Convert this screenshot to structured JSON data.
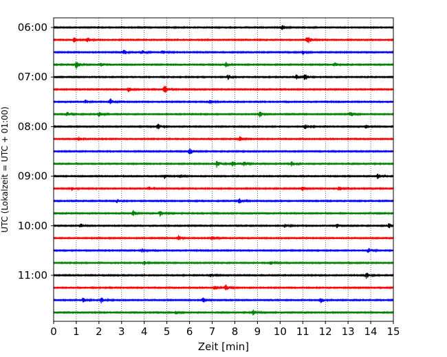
{
  "chart_data": {
    "type": "line",
    "xlabel": "Zeit  [min]",
    "ylabel": "UTC (Lokalzeit = UTC + 01:00)",
    "xlim": [
      0,
      15
    ],
    "x_ticks": [
      "0",
      "1",
      "2",
      "3",
      "4",
      "5",
      "6",
      "7",
      "8",
      "9",
      "10",
      "11",
      "12",
      "13",
      "14",
      "15"
    ],
    "y_ticks": [
      {
        "label": "06:00",
        "trace": 0
      },
      {
        "label": "07:00",
        "trace": 4
      },
      {
        "label": "08:00",
        "trace": 8
      },
      {
        "label": "09:00",
        "trace": 12
      },
      {
        "label": "10:00",
        "trace": 16
      },
      {
        "label": "11:00",
        "trace": 20
      }
    ],
    "grid": "vertical dotted at each minute",
    "trace_colors": [
      "#000000",
      "#ff0000",
      "#0000ff",
      "#008000"
    ],
    "traces": [
      {
        "start": "06:00",
        "color": "#000000",
        "events": [
          {
            "t": 10.1,
            "a": 0.5
          }
        ]
      },
      {
        "start": "06:15",
        "color": "#ff0000",
        "events": [
          {
            "t": 0.9,
            "a": 0.6
          },
          {
            "t": 1.5,
            "a": 0.5
          },
          {
            "t": 11.2,
            "a": 1.0
          }
        ]
      },
      {
        "start": "06:30",
        "color": "#0000ff",
        "events": [
          {
            "t": 3.1,
            "a": 0.6
          },
          {
            "t": 3.9,
            "a": 0.4
          },
          {
            "t": 4.8,
            "a": 0.4
          },
          {
            "t": 11.0,
            "a": 0.4
          }
        ]
      },
      {
        "start": "06:45",
        "color": "#008000",
        "events": [
          {
            "t": 1.0,
            "a": 0.8
          },
          {
            "t": 2.1,
            "a": 0.5
          },
          {
            "t": 7.6,
            "a": 0.6
          },
          {
            "t": 12.4,
            "a": 0.4
          }
        ]
      },
      {
        "start": "07:00",
        "color": "#000000",
        "events": [
          {
            "t": 7.7,
            "a": 0.5
          },
          {
            "t": 10.7,
            "a": 0.5
          },
          {
            "t": 11.1,
            "a": 0.8
          }
        ]
      },
      {
        "start": "07:15",
        "color": "#ff0000",
        "events": [
          {
            "t": 3.3,
            "a": 0.5
          },
          {
            "t": 4.9,
            "a": 1.1
          }
        ]
      },
      {
        "start": "07:30",
        "color": "#0000ff",
        "events": [
          {
            "t": 1.4,
            "a": 0.4
          },
          {
            "t": 2.5,
            "a": 0.8
          },
          {
            "t": 6.9,
            "a": 0.4
          }
        ]
      },
      {
        "start": "07:45",
        "color": "#008000",
        "events": [
          {
            "t": 0.6,
            "a": 0.4
          },
          {
            "t": 2.0,
            "a": 0.5
          },
          {
            "t": 9.1,
            "a": 0.6
          },
          {
            "t": 13.1,
            "a": 0.6
          }
        ]
      },
      {
        "start": "08:00",
        "color": "#000000",
        "events": [
          {
            "t": 4.6,
            "a": 0.6
          },
          {
            "t": 11.1,
            "a": 0.6
          },
          {
            "t": 13.8,
            "a": 0.4
          }
        ]
      },
      {
        "start": "08:15",
        "color": "#ff0000",
        "events": [
          {
            "t": 1.1,
            "a": 0.4
          },
          {
            "t": 8.2,
            "a": 0.5
          }
        ]
      },
      {
        "start": "08:30",
        "color": "#0000ff",
        "events": [
          {
            "t": 6.0,
            "a": 0.8
          }
        ]
      },
      {
        "start": "08:45",
        "color": "#008000",
        "events": [
          {
            "t": 7.2,
            "a": 0.7
          },
          {
            "t": 7.9,
            "a": 0.6
          },
          {
            "t": 8.4,
            "a": 0.6
          },
          {
            "t": 10.5,
            "a": 0.5
          }
        ]
      },
      {
        "start": "09:00",
        "color": "#000000",
        "events": [
          {
            "t": 4.9,
            "a": 0.5
          },
          {
            "t": 5.6,
            "a": 0.4
          },
          {
            "t": 14.3,
            "a": 0.6
          }
        ]
      },
      {
        "start": "09:15",
        "color": "#ff0000",
        "events": [
          {
            "t": 0.8,
            "a": 0.4
          },
          {
            "t": 4.2,
            "a": 0.4
          },
          {
            "t": 11.0,
            "a": 0.5
          },
          {
            "t": 12.6,
            "a": 0.5
          }
        ]
      },
      {
        "start": "09:30",
        "color": "#0000ff",
        "events": [
          {
            "t": 2.8,
            "a": 0.4
          },
          {
            "t": 8.2,
            "a": 0.6
          }
        ]
      },
      {
        "start": "09:45",
        "color": "#008000",
        "events": [
          {
            "t": 3.5,
            "a": 0.7
          },
          {
            "t": 4.7,
            "a": 0.7
          }
        ]
      },
      {
        "start": "10:00",
        "color": "#000000",
        "events": [
          {
            "t": 1.2,
            "a": 0.4
          },
          {
            "t": 10.2,
            "a": 0.4
          },
          {
            "t": 12.5,
            "a": 0.4
          },
          {
            "t": 14.8,
            "a": 0.6
          }
        ]
      },
      {
        "start": "10:15",
        "color": "#ff0000",
        "events": [
          {
            "t": 5.5,
            "a": 0.6
          },
          {
            "t": 7.0,
            "a": 0.5
          }
        ]
      },
      {
        "start": "10:30",
        "color": "#0000ff",
        "events": [
          {
            "t": 3.9,
            "a": 0.4
          },
          {
            "t": 13.9,
            "a": 0.5
          }
        ]
      },
      {
        "start": "10:45",
        "color": "#008000",
        "events": [
          {
            "t": 4.0,
            "a": 0.4
          },
          {
            "t": 9.6,
            "a": 0.4
          }
        ]
      },
      {
        "start": "11:00",
        "color": "#000000",
        "events": [
          {
            "t": 6.9,
            "a": 0.4
          },
          {
            "t": 13.8,
            "a": 0.7
          }
        ]
      },
      {
        "start": "11:15",
        "color": "#ff0000",
        "events": [
          {
            "t": 7.1,
            "a": 0.5
          },
          {
            "t": 7.6,
            "a": 0.6
          }
        ]
      },
      {
        "start": "11:30",
        "color": "#0000ff",
        "events": [
          {
            "t": 1.3,
            "a": 0.5
          },
          {
            "t": 2.1,
            "a": 0.6
          },
          {
            "t": 6.6,
            "a": 0.5
          },
          {
            "t": 11.8,
            "a": 0.6
          }
        ]
      },
      {
        "start": "11:45",
        "color": "#008000",
        "events": [
          {
            "t": 5.4,
            "a": 0.4
          },
          {
            "t": 8.8,
            "a": 0.6
          }
        ]
      }
    ]
  }
}
